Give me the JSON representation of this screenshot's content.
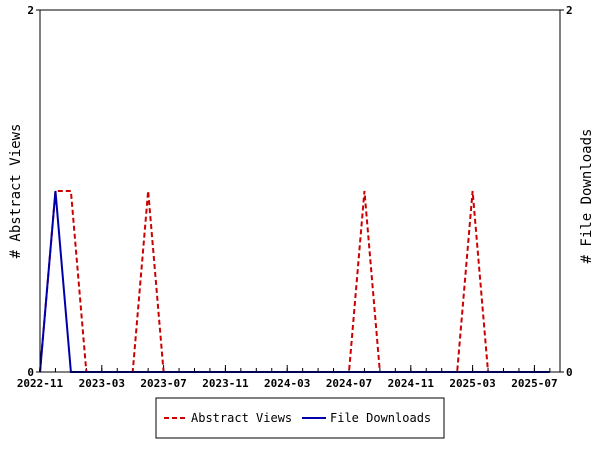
{
  "chart_data": {
    "type": "line",
    "title": "",
    "xlabel": "",
    "x_tick_labels": [
      "2022-11",
      "2023-03",
      "2023-07",
      "2023-11",
      "2024-03",
      "2024-07",
      "2024-11",
      "2025-03",
      "2025-07"
    ],
    "x_range": [
      "2022-11",
      "2025-08"
    ],
    "y_left": {
      "label": "# Abstract Views",
      "range": [
        0,
        2
      ],
      "tick_labels": [
        "0",
        "2"
      ]
    },
    "y_right": {
      "label": "# File Downloads",
      "range": [
        0,
        2
      ],
      "tick_labels": [
        "0",
        "2"
      ]
    },
    "grid": false,
    "legend_position": "bottom",
    "x": [
      "2022-11",
      "2022-12",
      "2023-01",
      "2023-02",
      "2023-03",
      "2023-04",
      "2023-05",
      "2023-06",
      "2023-07",
      "2023-08",
      "2023-09",
      "2023-10",
      "2023-11",
      "2023-12",
      "2024-01",
      "2024-02",
      "2024-03",
      "2024-04",
      "2024-05",
      "2024-06",
      "2024-07",
      "2024-08",
      "2024-09",
      "2024-10",
      "2024-11",
      "2024-12",
      "2025-01",
      "2025-02",
      "2025-03",
      "2025-04",
      "2025-05",
      "2025-06",
      "2025-07",
      "2025-08"
    ],
    "series": [
      {
        "name": "Abstract Views",
        "axis": "left",
        "color": "#cc0000",
        "style": "dashed",
        "values": [
          0,
          1,
          1,
          0,
          0,
          0,
          0,
          1,
          0,
          0,
          0,
          0,
          0,
          0,
          0,
          0,
          0,
          0,
          0,
          0,
          0,
          1,
          0,
          0,
          0,
          0,
          0,
          0,
          1,
          0,
          0,
          0,
          0,
          0
        ]
      },
      {
        "name": "File Downloads",
        "axis": "right",
        "color": "#0000aa",
        "style": "solid",
        "values": [
          0,
          1,
          0,
          0,
          0,
          0,
          0,
          0,
          0,
          0,
          0,
          0,
          0,
          0,
          0,
          0,
          0,
          0,
          0,
          0,
          0,
          0,
          0,
          0,
          0,
          0,
          0,
          0,
          0,
          0,
          0,
          0,
          0,
          0
        ]
      }
    ]
  }
}
